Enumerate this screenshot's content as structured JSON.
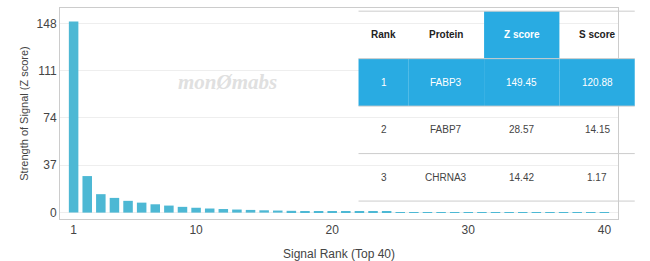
{
  "chart_data": {
    "type": "bar",
    "x": [
      1,
      2,
      3,
      4,
      5,
      6,
      7,
      8,
      9,
      10,
      11,
      12,
      13,
      14,
      15,
      16,
      17,
      18,
      19,
      20,
      21,
      22,
      23,
      24,
      25,
      26,
      27,
      28,
      29,
      30,
      31,
      32,
      33,
      34,
      35,
      36,
      37,
      38,
      39,
      40
    ],
    "values": [
      149.45,
      28.57,
      14.42,
      11.5,
      9.2,
      7.8,
      6.5,
      5.5,
      4.5,
      3.8,
      3.2,
      2.8,
      2.4,
      2.1,
      1.8,
      1.6,
      1.4,
      1.2,
      1.05,
      0.9,
      0.78,
      0.68,
      0.58,
      0.5,
      0.43,
      0.37,
      0.32,
      0.28,
      0.24,
      0.21,
      0.18,
      0.15,
      0.13,
      0.11,
      0.09,
      0.08,
      0.07,
      0.06,
      0.05,
      0.04
    ],
    "color": "#4db8d4",
    "xlabel": "Signal Rank (Top 40)",
    "ylabel": "Strength of Signal (Z score)",
    "xlim": [
      0,
      41
    ],
    "ylim": [
      -5,
      160
    ],
    "xticks": [
      1,
      10,
      20,
      30,
      40
    ],
    "yticks": [
      0,
      37,
      74,
      111,
      148
    ],
    "grid": true,
    "annotations": [
      "monØmabs"
    ],
    "table": {
      "headers": [
        "Rank",
        "Protein",
        "Z score",
        "S score"
      ],
      "rows": [
        [
          "1",
          "FABP3",
          "149.45",
          "120.88"
        ],
        [
          "2",
          "FABP7",
          "28.57",
          "14.15"
        ],
        [
          "3",
          "CHRNA3",
          "14.42",
          "1.17"
        ]
      ],
      "color": "#29abe2"
    }
  }
}
